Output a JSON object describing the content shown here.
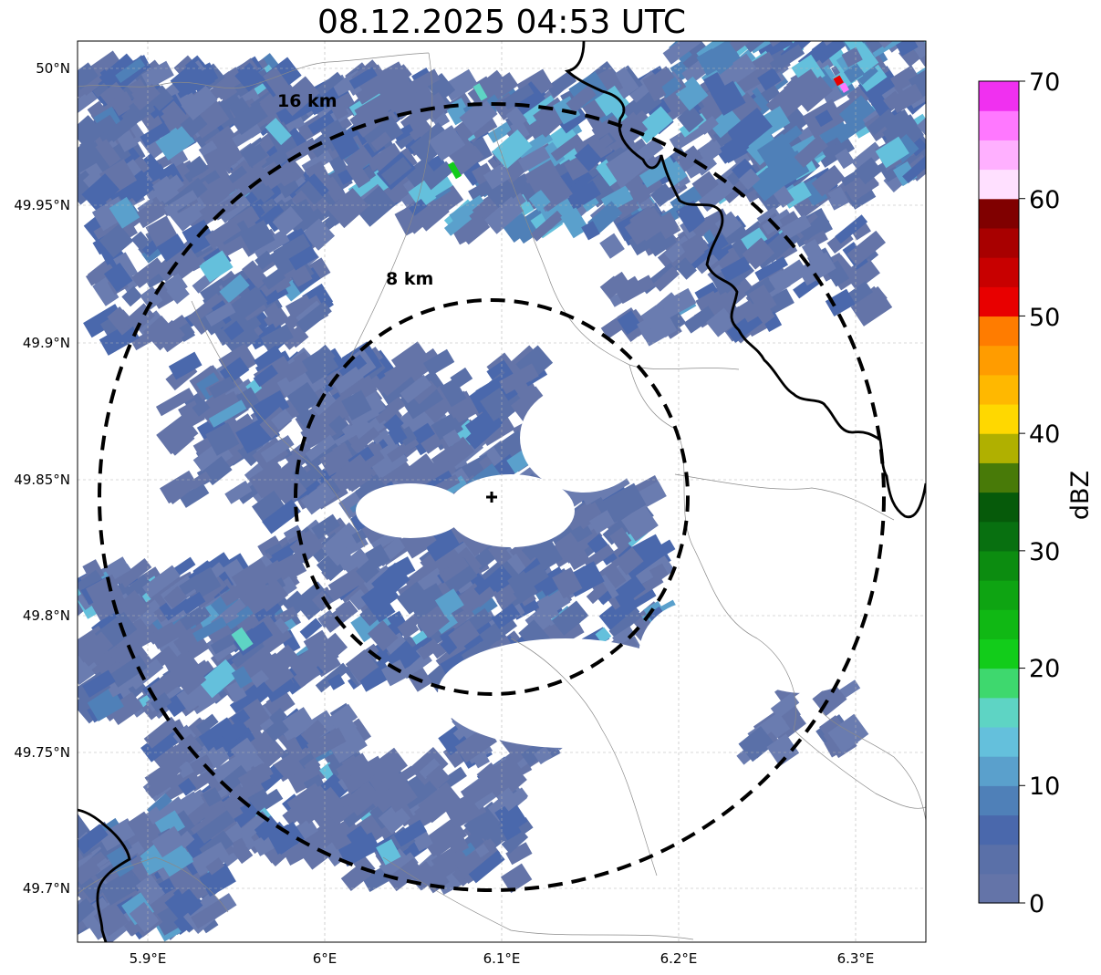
{
  "title": "08.12.2025 04:53 UTC",
  "map": {
    "lon_ticks": [
      "5.9°E",
      "6°E",
      "6.1°E",
      "6.2°E",
      "6.3°E"
    ],
    "lat_ticks": [
      "50°N",
      "49.95°N",
      "49.9°N",
      "49.85°N",
      "49.8°N",
      "49.75°N",
      "49.7°N"
    ],
    "range_rings": [
      {
        "label": "8 km",
        "radius_km": 8
      },
      {
        "label": "16 km",
        "radius_km": 16
      }
    ],
    "radar_site": {
      "lon": 6.095,
      "lat": 49.842
    }
  },
  "colorbar": {
    "label": "dBZ",
    "tick_labels": [
      "0",
      "10",
      "20",
      "30",
      "40",
      "50",
      "60",
      "70"
    ],
    "colors": [
      "#6474a8",
      "#5a70a8",
      "#4a68ac",
      "#4f80b8",
      "#5aa0cc",
      "#64c0dc",
      "#5ed4c4",
      "#3ed86e",
      "#12cc1a",
      "#10b814",
      "#0ea412",
      "#0c8c10",
      "#087010",
      "#065a0a",
      "#487a08",
      "#b0b000",
      "#ffd800",
      "#ffb800",
      "#ff9c00",
      "#ff7c00",
      "#e80000",
      "#c80000",
      "#a80000",
      "#800000",
      "#ffe0ff",
      "#ffb0ff",
      "#ff78ff",
      "#f030f0"
    ]
  }
}
